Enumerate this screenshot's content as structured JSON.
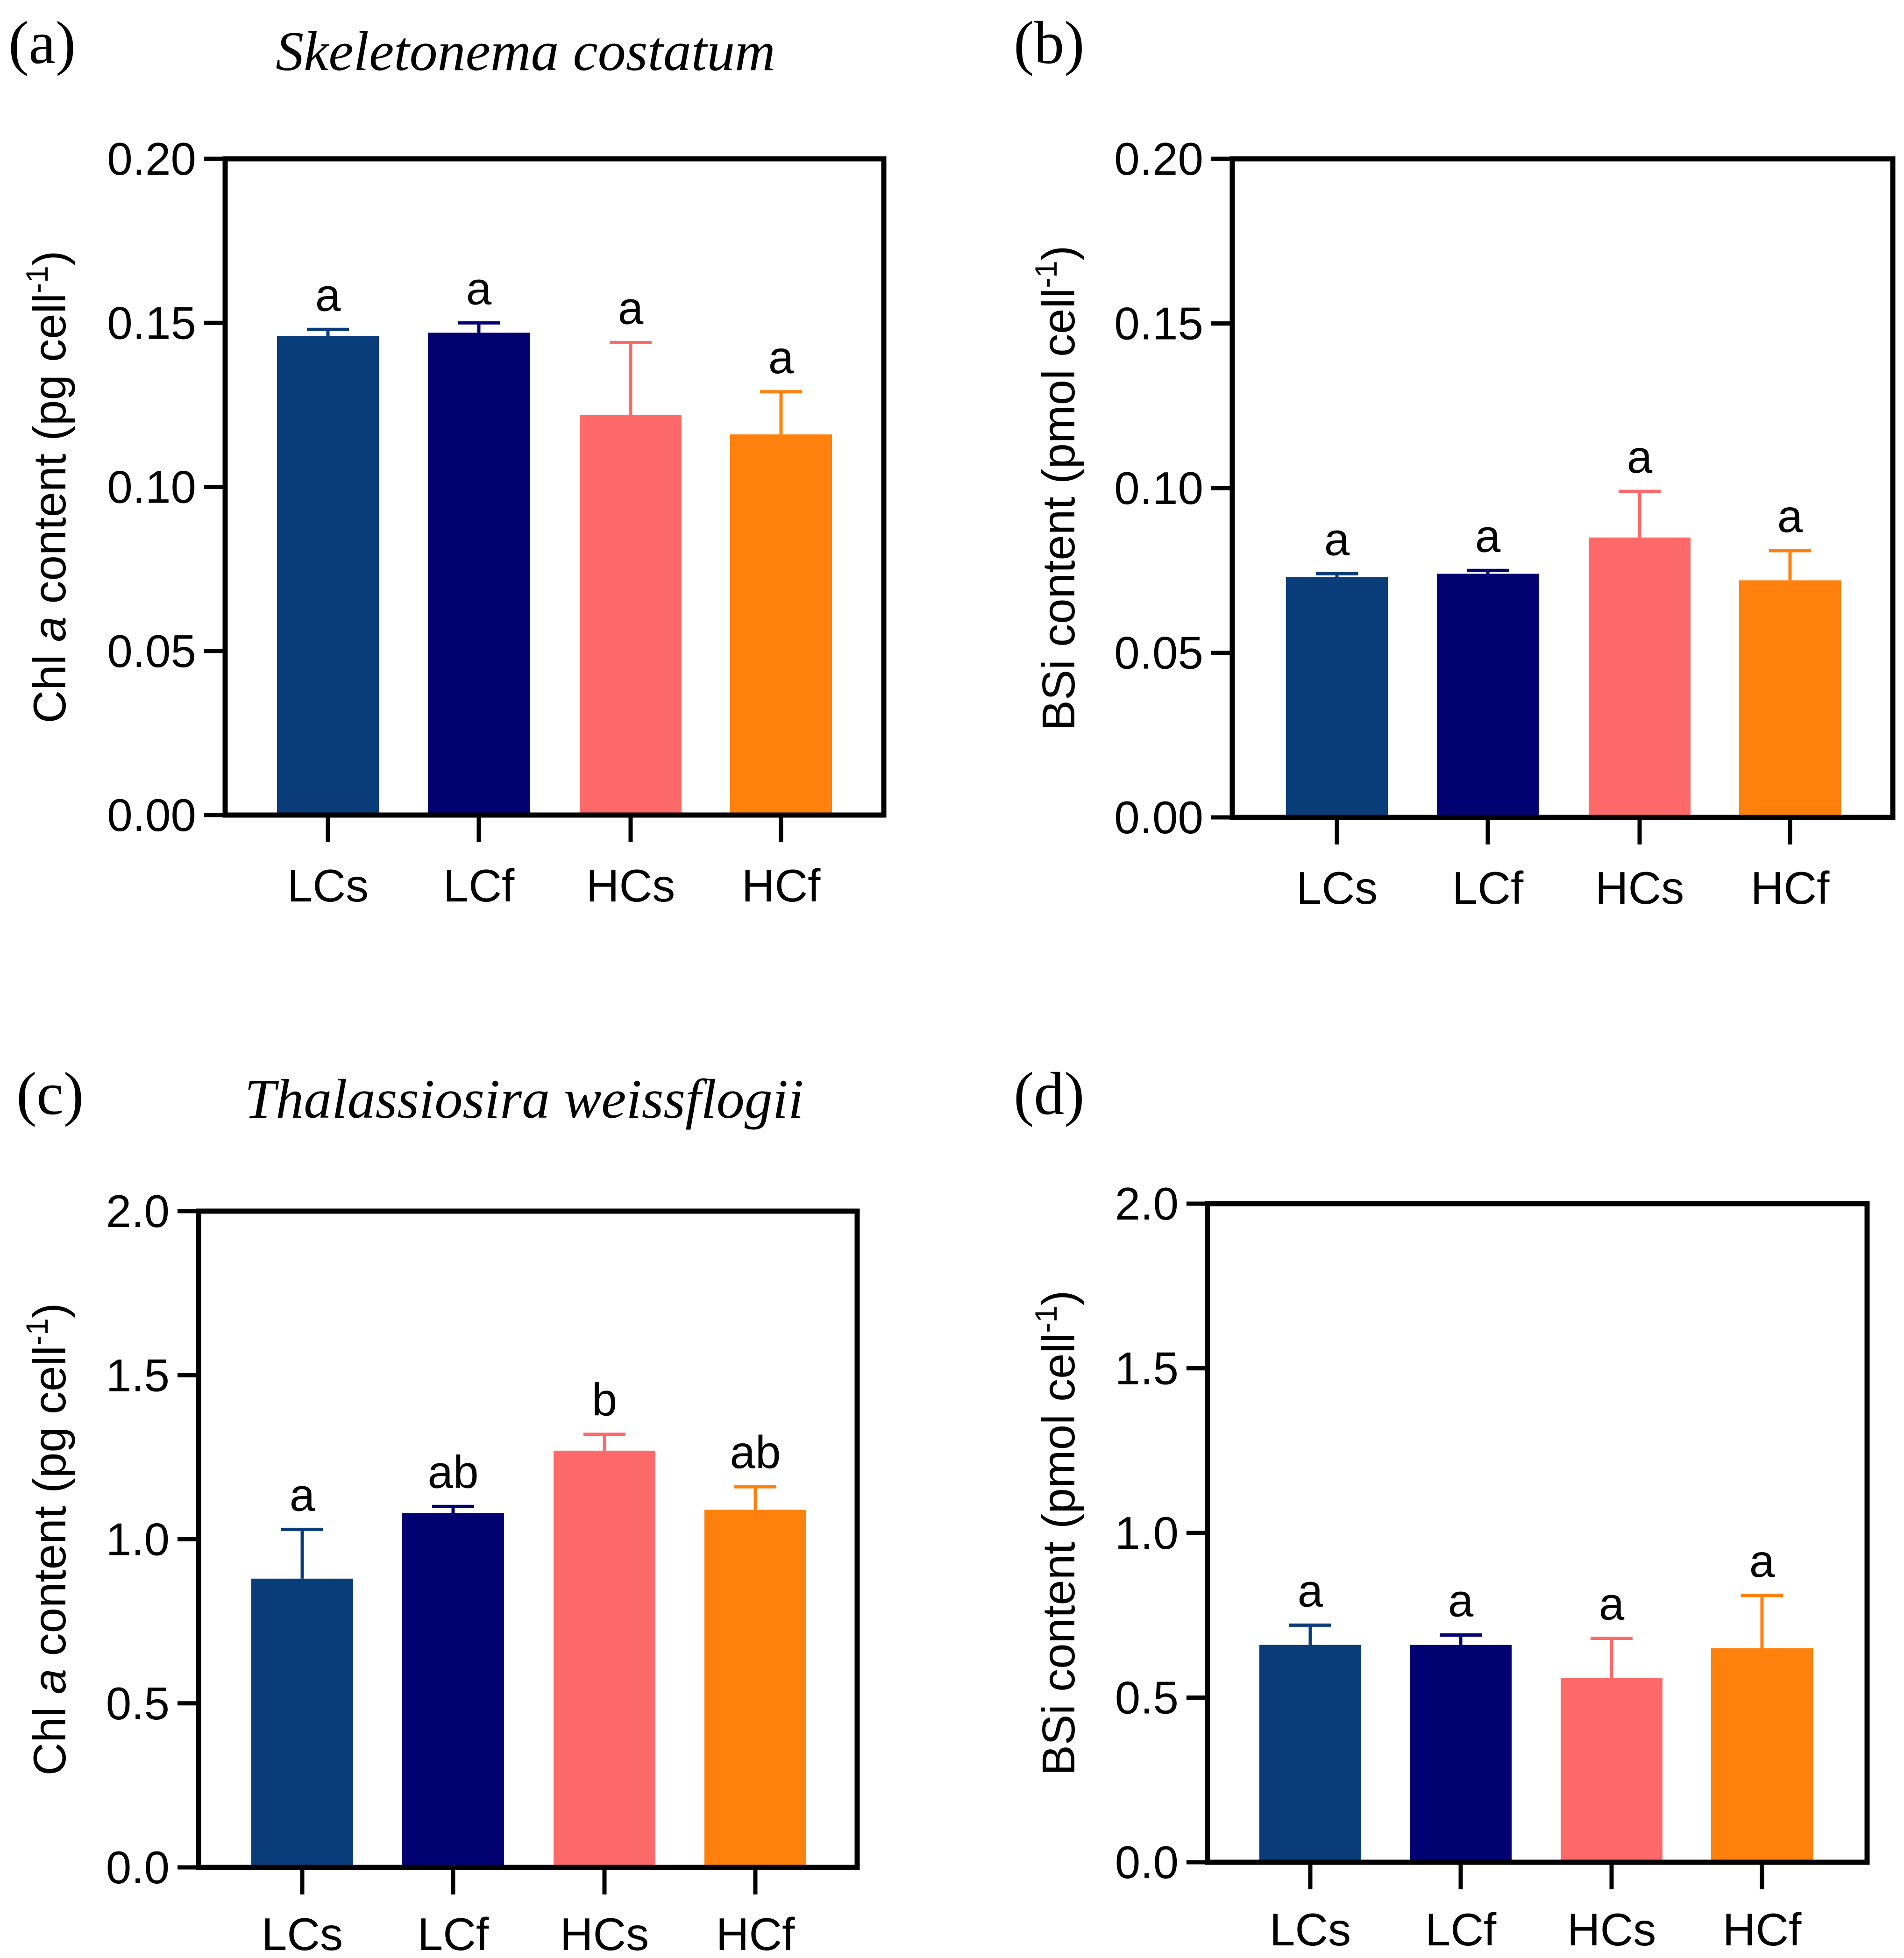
{
  "chart_data": [
    {
      "type": "bar",
      "panel_label": "(a)",
      "title": "Skeletonema costatum",
      "ylabel": {
        "pre": "Chl ",
        "ital": "a",
        "post": " content (pg cell",
        "sup": "-1",
        "close": ")"
      },
      "categories": [
        "LCs",
        "LCf",
        "HCs",
        "HCf"
      ],
      "values": [
        0.146,
        0.147,
        0.122,
        0.116
      ],
      "errors": [
        0.002,
        0.003,
        0.022,
        0.013
      ],
      "sig_letters": [
        "a",
        "a",
        "a",
        "a"
      ],
      "colors": [
        "#083d7a",
        "#010172",
        "#fd6969",
        "#fe800d"
      ],
      "ylim": [
        0,
        0.2
      ],
      "yticks": [
        0,
        0.05,
        0.1,
        0.15,
        0.2
      ],
      "ytick_labels": [
        "0.00",
        "0.05",
        "0.10",
        "0.15",
        "0.20"
      ]
    },
    {
      "type": "bar",
      "panel_label": "(b)",
      "title": "",
      "ylabel": {
        "pre": "BSi content (pmol cell",
        "ital": "",
        "post": "",
        "sup": "-1",
        "close": ")"
      },
      "categories": [
        "LCs",
        "LCf",
        "HCs",
        "HCf"
      ],
      "values": [
        0.073,
        0.074,
        0.085,
        0.072
      ],
      "errors": [
        0.001,
        0.001,
        0.014,
        0.009
      ],
      "sig_letters": [
        "a",
        "a",
        "a",
        "a"
      ],
      "colors": [
        "#083d7a",
        "#010172",
        "#fd6969",
        "#fe800d"
      ],
      "ylim": [
        0,
        0.2
      ],
      "yticks": [
        0,
        0.05,
        0.1,
        0.15,
        0.2
      ],
      "ytick_labels": [
        "0.00",
        "0.05",
        "0.10",
        "0.15",
        "0.20"
      ]
    },
    {
      "type": "bar",
      "panel_label": "(c)",
      "title": "Thalassiosira weissflogii",
      "ylabel": {
        "pre": "Chl ",
        "ital": "a",
        "post": " content (pg cell",
        "sup": "-1",
        "close": ")"
      },
      "categories": [
        "LCs",
        "LCf",
        "HCs",
        "HCf"
      ],
      "values": [
        0.88,
        1.08,
        1.27,
        1.09
      ],
      "errors": [
        0.15,
        0.02,
        0.05,
        0.07
      ],
      "sig_letters": [
        "a",
        "ab",
        "b",
        "ab"
      ],
      "colors": [
        "#083d7a",
        "#010172",
        "#fd6969",
        "#fe800d"
      ],
      "ylim": [
        0,
        2.0
      ],
      "yticks": [
        0,
        0.5,
        1.0,
        1.5,
        2.0
      ],
      "ytick_labels": [
        "0.0",
        "0.5",
        "1.0",
        "1.5",
        "2.0"
      ]
    },
    {
      "type": "bar",
      "panel_label": "(d)",
      "title": "",
      "ylabel": {
        "pre": "BSi content (pmol cell",
        "ital": "",
        "post": "",
        "sup": "-1",
        "close": ")"
      },
      "categories": [
        "LCs",
        "LCf",
        "HCs",
        "HCf"
      ],
      "values": [
        0.66,
        0.66,
        0.56,
        0.65
      ],
      "errors": [
        0.06,
        0.03,
        0.12,
        0.16
      ],
      "sig_letters": [
        "a",
        "a",
        "a",
        "a"
      ],
      "colors": [
        "#083d7a",
        "#010172",
        "#fd6969",
        "#fe800d"
      ],
      "ylim": [
        0,
        2.0
      ],
      "yticks": [
        0,
        0.5,
        1.0,
        1.5,
        2.0
      ],
      "ytick_labels": [
        "0.0",
        "0.5",
        "1.0",
        "1.5",
        "2.0"
      ]
    }
  ]
}
